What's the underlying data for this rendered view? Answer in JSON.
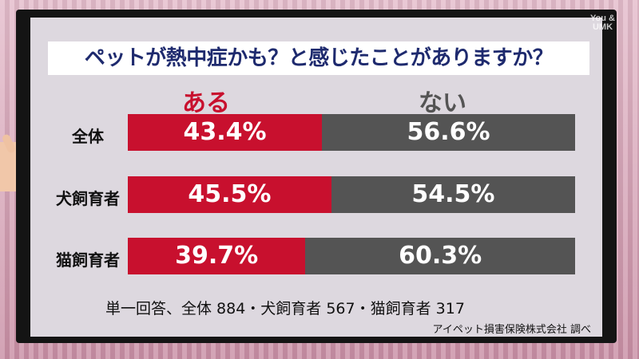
{
  "watermark": {
    "line1": "You &",
    "line2": "UMK"
  },
  "chart_data": {
    "type": "bar",
    "stacked": true,
    "orientation": "horizontal",
    "title": "ペットが熱中症かも？と感じたことがありますか？",
    "categories": [
      "全体",
      "犬飼育者",
      "猫飼育者"
    ],
    "series": [
      {
        "name": "ある",
        "values": [
          43.4,
          45.5,
          39.7
        ],
        "labels": [
          "43.4%",
          "45.5%",
          "39.7%"
        ],
        "color": "#c8102e"
      },
      {
        "name": "ない",
        "values": [
          56.6,
          54.5,
          60.3
        ],
        "labels": [
          "56.6%",
          "54.5%",
          "60.3%"
        ],
        "color": "#545454"
      }
    ],
    "xlim": [
      0,
      100
    ],
    "grid": false,
    "note": "単一回答、全体 884・犬飼育者 567・猫飼育者 317",
    "source": "アイペット損害保険株式会社 調べ"
  }
}
